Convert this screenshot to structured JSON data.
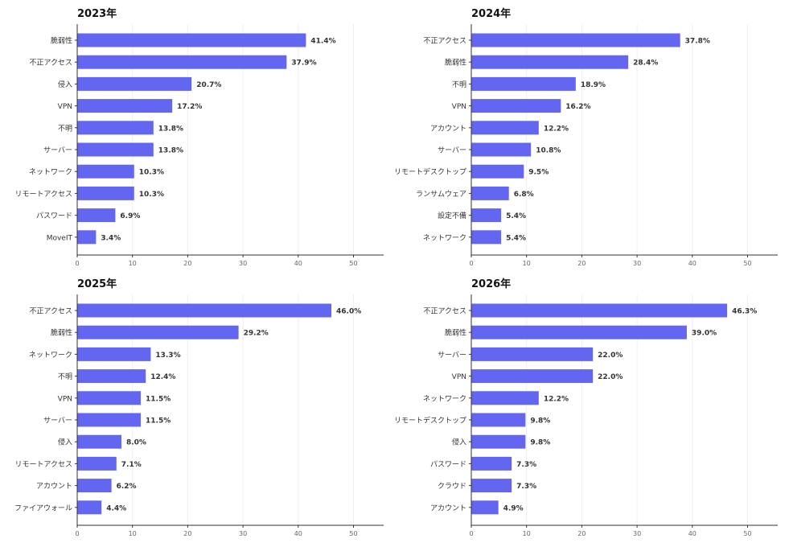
{
  "chart_data": [
    {
      "type": "bar",
      "orientation": "horizontal",
      "title": "2023年",
      "categories": [
        "脆弱性",
        "不正アクセス",
        "侵入",
        "VPN",
        "不明",
        "サーバー",
        "ネットワーク",
        "リモートアクセス",
        "パスワード",
        "MoveIT"
      ],
      "values": [
        41.4,
        37.9,
        20.7,
        17.2,
        13.8,
        13.8,
        10.3,
        10.3,
        6.9,
        3.4
      ],
      "value_labels": [
        "41.4%",
        "37.9%",
        "20.7%",
        "17.2%",
        "13.8%",
        "13.8%",
        "10.3%",
        "10.3%",
        "6.9%",
        "3.4%"
      ],
      "xlim": [
        0,
        55
      ],
      "xticks": [
        0,
        10,
        20,
        30,
        40,
        50
      ],
      "grid": true
    },
    {
      "type": "bar",
      "orientation": "horizontal",
      "title": "2024年",
      "categories": [
        "不正アクセス",
        "脆弱性",
        "不明",
        "VPN",
        "アカウント",
        "サーバー",
        "リモートデスクトップ",
        "ランサムウェア",
        "設定不備",
        "ネットワーク"
      ],
      "values": [
        37.8,
        28.4,
        18.9,
        16.2,
        12.2,
        10.8,
        9.5,
        6.8,
        5.4,
        5.4
      ],
      "value_labels": [
        "37.8%",
        "28.4%",
        "18.9%",
        "16.2%",
        "12.2%",
        "10.8%",
        "9.5%",
        "6.8%",
        "5.4%",
        "5.4%"
      ],
      "xlim": [
        0,
        55
      ],
      "xticks": [
        0,
        10,
        20,
        30,
        40,
        50
      ],
      "grid": true
    },
    {
      "type": "bar",
      "orientation": "horizontal",
      "title": "2025年",
      "categories": [
        "不正アクセス",
        "脆弱性",
        "ネットワーク",
        "不明",
        "VPN",
        "サーバー",
        "侵入",
        "リモートアクセス",
        "アカウント",
        "ファイアウォール"
      ],
      "values": [
        46.0,
        29.2,
        13.3,
        12.4,
        11.5,
        11.5,
        8.0,
        7.1,
        6.2,
        4.4
      ],
      "value_labels": [
        "46.0%",
        "29.2%",
        "13.3%",
        "12.4%",
        "11.5%",
        "11.5%",
        "8.0%",
        "7.1%",
        "6.2%",
        "4.4%"
      ],
      "xlim": [
        0,
        55
      ],
      "xticks": [
        0,
        10,
        20,
        30,
        40,
        50
      ],
      "grid": true
    },
    {
      "type": "bar",
      "orientation": "horizontal",
      "title": "2026年",
      "categories": [
        "不正アクセス",
        "脆弱性",
        "サーバー",
        "VPN",
        "ネットワーク",
        "リモートデスクトップ",
        "侵入",
        "パスワード",
        "クラウド",
        "アカウント"
      ],
      "values": [
        46.3,
        39.0,
        22.0,
        22.0,
        12.2,
        9.8,
        9.8,
        7.3,
        7.3,
        4.9
      ],
      "value_labels": [
        "46.3%",
        "39.0%",
        "22.0%",
        "22.0%",
        "12.2%",
        "9.8%",
        "9.8%",
        "7.3%",
        "7.3%",
        "4.9%"
      ],
      "xlim": [
        0,
        55
      ],
      "xticks": [
        0,
        10,
        20,
        30,
        40,
        50
      ],
      "grid": true,
      "highlight_category": "クラウド"
    }
  ],
  "colors": {
    "bar": "#6366f1",
    "grid": "#eeeeee",
    "axis": "#333333",
    "highlight": "#ff0000"
  }
}
